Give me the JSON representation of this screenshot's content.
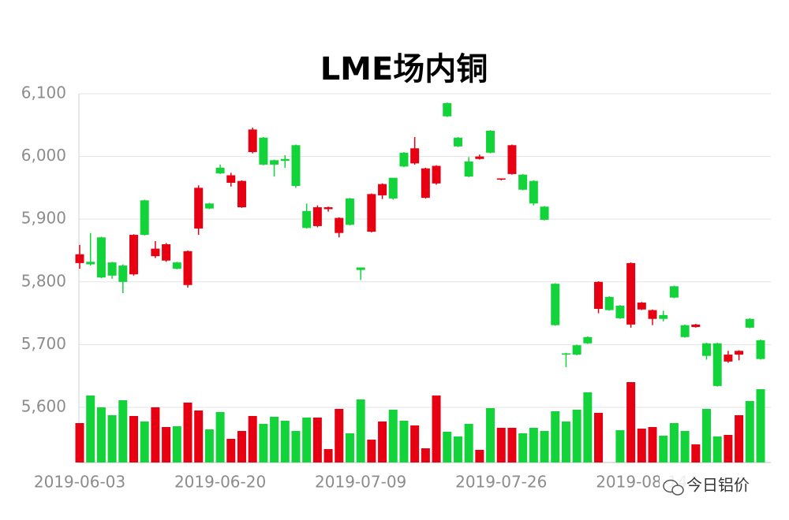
{
  "chart_data": {
    "type": "candlestick",
    "title": "LME场内铜",
    "categories": [
      "2019-06-03",
      null,
      null,
      null,
      null,
      null,
      null,
      null,
      null,
      null,
      null,
      null,
      null,
      "2019-06-20",
      null,
      null,
      null,
      null,
      null,
      null,
      null,
      null,
      null,
      null,
      null,
      null,
      "2019-07-09",
      null,
      null,
      null,
      null,
      null,
      null,
      null,
      null,
      null,
      null,
      null,
      null,
      "2019-07-26",
      null,
      null,
      null,
      null,
      null,
      null,
      null,
      null,
      null,
      null,
      null,
      null,
      "2019-08-14",
      null,
      null,
      null,
      null,
      null,
      null,
      null,
      null,
      null,
      null,
      null
    ],
    "open": [
      5830,
      5832,
      5871,
      5831,
      5826,
      5812,
      5930,
      5841,
      5834,
      5831,
      5795,
      5885,
      5925,
      5982,
      5958,
      5919,
      6007,
      6030,
      5994,
      5996,
      6018,
      5913,
      5889,
      5916,
      5878,
      5933,
      5823,
      5880,
      5938,
      5966,
      6006,
      5989,
      5934,
      5957,
      6085,
      6030,
      5992,
      5996,
      6041,
      5963,
      5972,
      5971,
      5961,
      5920,
      5797,
      5686,
      5699,
      5712,
      5757,
      5776,
      5762,
      5732,
      5756,
      5741,
      5747,
      5793,
      5731,
      5728,
      5702,
      5702,
      5673,
      5684,
      5741,
      5707
    ],
    "high": [
      5859,
      5878,
      5872,
      5832,
      5828,
      5876,
      5931,
      5865,
      5862,
      5832,
      5850,
      5954,
      5926,
      5987,
      5974,
      5962,
      6046,
      6031,
      5995,
      6002,
      6019,
      5925,
      5922,
      5920,
      5903,
      5934,
      5823,
      5941,
      5957,
      5966,
      6007,
      6031,
      5982,
      5986,
      6086,
      6031,
      5999,
      6003,
      6042,
      5965,
      6019,
      5972,
      5962,
      5921,
      5798,
      5687,
      5700,
      5713,
      5801,
      5777,
      5763,
      5831,
      5768,
      5756,
      5754,
      5794,
      5732,
      5733,
      5703,
      5703,
      5690,
      5691,
      5742,
      5708
    ],
    "low": [
      5821,
      5826,
      5806,
      5805,
      5782,
      5810,
      5874,
      5838,
      5832,
      5820,
      5791,
      5875,
      5916,
      5972,
      5952,
      5918,
      6005,
      5986,
      5968,
      5982,
      5950,
      5885,
      5887,
      5912,
      5871,
      5890,
      5803,
      5879,
      5932,
      5931,
      5983,
      5987,
      5933,
      5955,
      6063,
      6015,
      5967,
      5995,
      6005,
      5962,
      5971,
      5946,
      5922,
      5898,
      5730,
      5664,
      5683,
      5701,
      5750,
      5754,
      5741,
      5727,
      5755,
      5731,
      5737,
      5774,
      5711,
      5727,
      5676,
      5633,
      5671,
      5675,
      5726,
      5676
    ],
    "close": [
      5844,
      5828,
      5807,
      5810,
      5800,
      5875,
      5875,
      5853,
      5860,
      5821,
      5849,
      5950,
      5917,
      5973,
      5970,
      5961,
      6043,
      5987,
      5987,
      5993,
      5953,
      5886,
      5919,
      5919,
      5902,
      5891,
      5819,
      5940,
      5956,
      5933,
      5984,
      6013,
      5981,
      5985,
      6064,
      6016,
      5968,
      6000,
      6006,
      5965,
      6018,
      5947,
      5925,
      5899,
      5731,
      5684,
      5684,
      5702,
      5800,
      5755,
      5742,
      5830,
      5767,
      5755,
      5741,
      5775,
      5712,
      5732,
      5682,
      5634,
      5684,
      5690,
      5727,
      5677
    ],
    "volume": [
      50,
      85,
      70,
      60,
      79,
      59,
      52,
      70,
      45,
      46,
      76,
      66,
      42,
      64,
      30,
      40,
      59,
      49,
      58,
      53,
      40,
      57,
      57,
      17,
      68,
      37,
      80,
      29,
      52,
      67,
      53,
      47,
      18,
      85,
      39,
      33,
      49,
      16,
      69,
      44,
      44,
      37,
      44,
      40,
      65,
      52,
      67,
      89,
      63,
      0,
      41,
      102,
      43,
      45,
      34,
      50,
      40,
      23,
      68,
      33,
      35,
      60,
      78,
      93
    ],
    "up_color": "#e60012",
    "down_color": "#12d33a",
    "ylim": [
      5512,
      6100
    ],
    "yticks": [
      {
        "value": 5600,
        "label": "5,600"
      },
      {
        "value": 5700,
        "label": "5,700"
      },
      {
        "value": 5800,
        "label": "5,800"
      },
      {
        "value": 5900,
        "label": "5,900"
      },
      {
        "value": 6000,
        "label": "6,000"
      },
      {
        "value": 6100,
        "label": "6,100"
      }
    ],
    "y2lim": [
      0,
      468
    ],
    "grid": true
  },
  "watermark": "今日铝价"
}
